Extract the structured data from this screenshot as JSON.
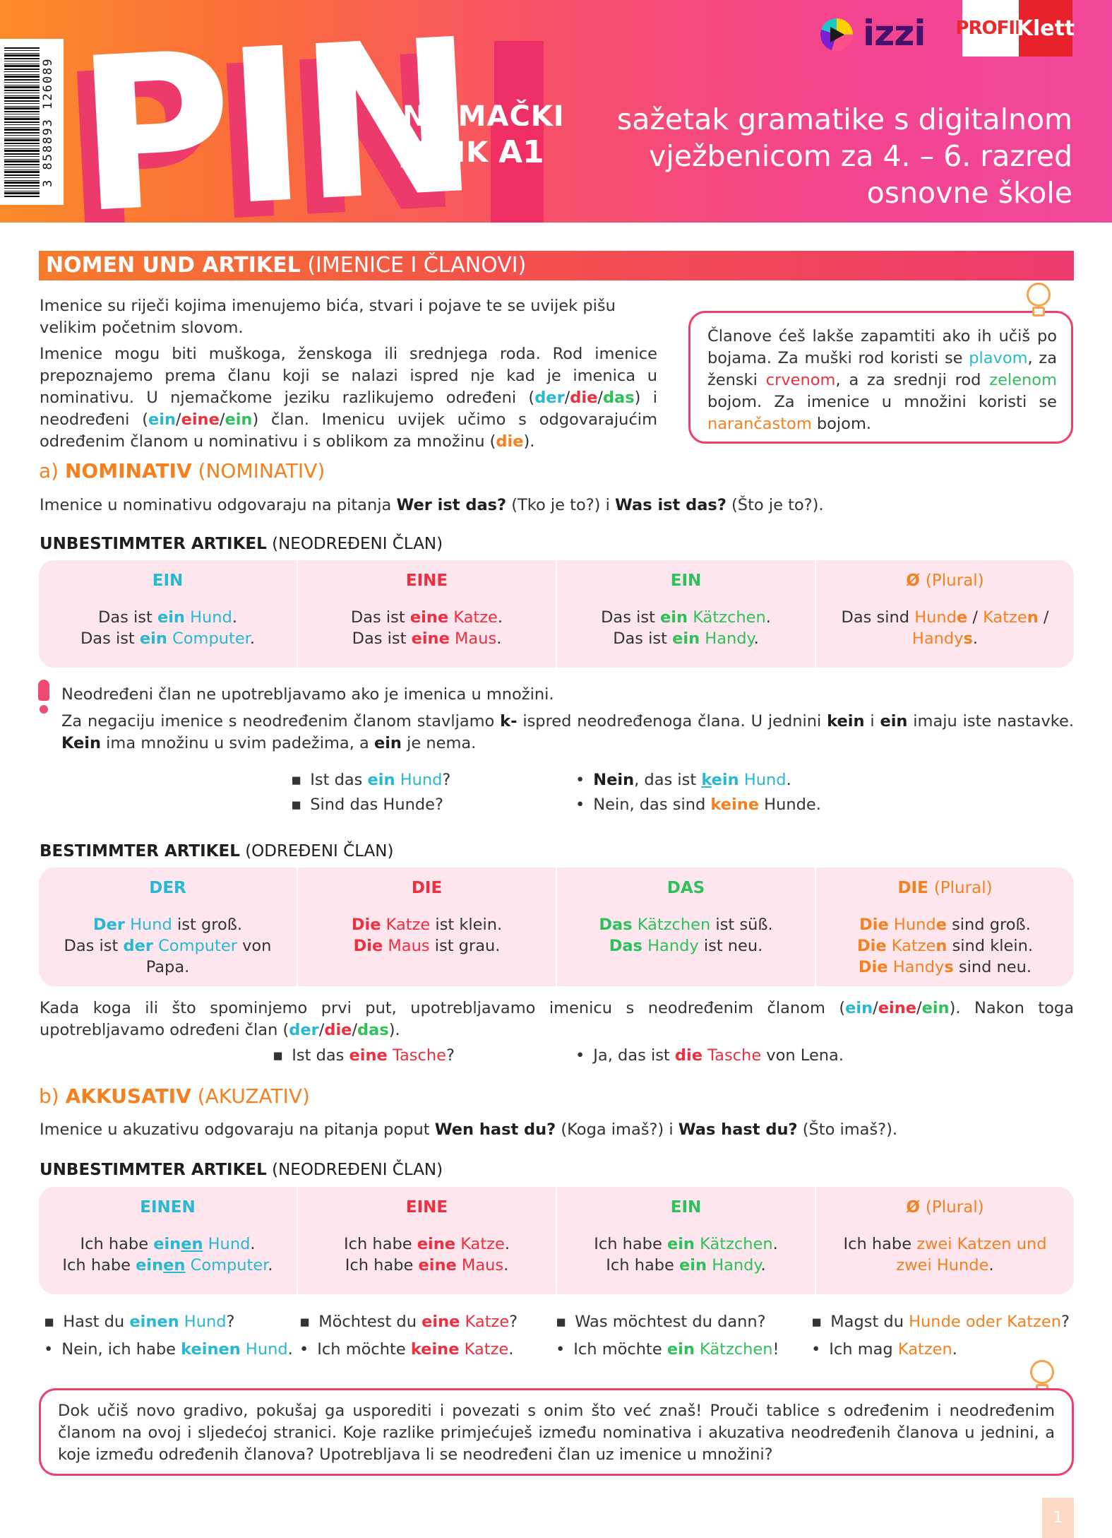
{
  "header": {
    "barcode_digits": "3 858893 126089",
    "title": "PIN",
    "subject_line1": "NJEMAČKI",
    "subject_line2": "JEZIK",
    "level": "A1",
    "tagline_line1": "sažetak gramatike s digitalnom",
    "tagline_line2": "vježbenicom za 4. – 6. razred",
    "tagline_line3": "osnovne škole",
    "logo_izzi": "izzi",
    "logo_profil": "PROFIL",
    "logo_klett": "Klett"
  },
  "section": {
    "title_bold": "NOMEN UND ARTIKEL",
    "title_rest": "(IMENICE I ČLANOVI)"
  },
  "intro": {
    "p1": "Imenice su riječi kojima imenujemo bića, stvari i pojave te se uvijek pišu velikim početnim slovom.",
    "p2_a": "Imenice mogu biti muškoga, ženskoga ili srednjega roda. Rod imenice prepoznajemo prema članu koji se nalazi ispred nje kad je imenica u nominativu. U njemačkome jeziku razlikujemo određeni (",
    "p2_b": ") i neodređeni (",
    "p2_c": ") član. Imenicu uvijek učimo s odgovarajućim određenim članom u nominativu i s oblikom za množinu (",
    "p2_d": ").",
    "der": "der",
    "die": "die",
    "das": "das",
    "ein": "ein",
    "eine": "eine",
    "slash": "/"
  },
  "tip1": {
    "a": "Članove ćeš lakše zapamtiti ako ih učiš po bojama. Za muški rod koristi se ",
    "plavom": "plavom",
    "b": ", za ženski ",
    "crvenom": "crvenom",
    "c": ", a za srednji rod ",
    "zelenom": "zelenom",
    "d": " bojom. Za imenice u množini koristi se ",
    "narancastom": "narančastom",
    "e": " bojom."
  },
  "nominativ": {
    "label": "a)",
    "bold": "NOMINATIV",
    "rest": "(NOMINATIV)",
    "q_a": "Imenice u nominativu odgovaraju na pitanja ",
    "q_b": "Wer ist das?",
    "q_c": " (Tko je to?) i ",
    "q_d": "Was ist das?",
    "q_e": " (Što je to?)."
  },
  "unbest1": {
    "bold": "UNBESTIMMTER ARTIKEL",
    "rest": "(NEODREĐENI ČLAN)"
  },
  "tbl1": {
    "h1": "EIN",
    "h2": "EINE",
    "h3": "EIN",
    "h4a": "Ø",
    "h4b": "(Plural)",
    "das_ist": "Das ist ",
    "das_sind": "Das sind ",
    "ein": "ein",
    "eine": "eine",
    "hund": "Hund",
    "computer": "Computer",
    "katze": "Katze",
    "maus": "Maus",
    "katzchen": "Kätzchen",
    "handy": "Handy",
    "hund_stem": "Hund",
    "e": "e",
    "katze_stem": "Katze",
    "n": "n",
    "handy_stem": "Handy",
    "s": "s",
    "dot": ".",
    "slash": " / "
  },
  "warning": {
    "l1": "Neodređeni član ne upotrebljavamo ako je imenica u množini.",
    "l2_a": "Za negaciju imenice s neodređenim članom stavljamo ",
    "l2_b": "k-",
    "l2_c": " ispred neodređenoga člana. U jednini ",
    "l2_d": "kein",
    "l2_e": " i ",
    "l2_f": "ein",
    "l2_g": " imaju iste nastavke. ",
    "l2_h": "Kein",
    "l2_i": " ima množinu u svim padežima, a ",
    "l2_j": "ein",
    "l2_k": " je nema."
  },
  "ex1": {
    "q1_a": "Ist das ",
    "q1_b": "ein",
    "q1_c": "Hund",
    "q1_d": "?",
    "q2": "Sind das Hunde?",
    "a1_a": "Nein",
    "a1_b": ", das ist ",
    "a1_k": "k",
    "a1_ein": "ein",
    "a1_c": "Hund",
    "a1_d": ".",
    "a2_a": "Nein, das sind ",
    "a2_b": "keine",
    "a2_c": " Hunde."
  },
  "best": {
    "bold": "BESTIMMTER ARTIKEL",
    "rest": "(ODREĐENI ČLAN)"
  },
  "tbl2": {
    "h1": "DER",
    "h2": "DIE",
    "h3": "DAS",
    "h4a": "DIE",
    "h4b": "(Plural)",
    "der": "Der",
    "der_l": "der",
    "die": "Die",
    "das": "Das",
    "hund": "Hund",
    "ist_gross": " ist groß.",
    "das_ist": "Das ist ",
    "computer": "Computer",
    "von_papa": " von Papa.",
    "katze": "Katze",
    "ist_klein": " ist klein.",
    "maus": "Maus",
    "ist_grau": " ist grau.",
    "katzchen": "Kätzchen",
    "ist_suss": " ist süß.",
    "handy": "Handy",
    "ist_neu": " ist neu.",
    "hund_stem": "Hund",
    "e": "e",
    "sind_gross": " sind groß.",
    "katze_stem": "Katze",
    "n": "n",
    "sind_klein": " sind klein.",
    "handy_stem": "Handy",
    "s": "s",
    "sind_neu": " sind neu."
  },
  "first_mention": {
    "a": "Kada koga ili što spominjemo prvi put, upotrebljavamo imenicu s neodređenim članom (",
    "b": "). Nakon toga upotrebljavamo određeni član (",
    "c": ").",
    "ein": "ein",
    "eine": "eine",
    "der": "der",
    "die": "die",
    "das": "das",
    "slash": "/"
  },
  "ex2": {
    "q_a": "Ist das ",
    "q_b": "eine",
    "q_c": " Tasche",
    "q_d": "?",
    "a_a": "Ja, das ist ",
    "a_b": "die",
    "a_c": " Tasche",
    "a_d": " von Lena."
  },
  "akkusativ": {
    "label": "b)",
    "bold": "AKKUSATIV",
    "rest": "(AKUZATIV)",
    "q_a": "Imenice u akuzativu odgovaraju na pitanja poput ",
    "q_b": "Wen hast du?",
    "q_c": " (Koga imaš?) i ",
    "q_d": "Was hast du?",
    "q_e": " (Što imaš?)."
  },
  "unbest2": {
    "bold": "UNBESTIMMTER ARTIKEL",
    "rest": "(NEODREĐENI ČLAN)"
  },
  "tbl3": {
    "h1": "EINEN",
    "h2": "EINE",
    "h3": "EIN",
    "h4a": "Ø",
    "h4b": "(Plural)",
    "ich_habe": "Ich habe ",
    "ein": "ein",
    "en": "en",
    "eine": "eine",
    "hund": "Hund",
    "computer": "Computer",
    "katze": "Katze",
    "maus": "Maus",
    "katzchen": "Kätzchen",
    "handy": "Handy",
    "plural_a": "zwei Katzen und",
    "plural_b": "zwei Hunde",
    "dot": "."
  },
  "ex3": {
    "c1_q_a": "Hast du ",
    "c1_q_b": "einen",
    "c1_q_c": " Hund",
    "c1_q_d": "?",
    "c1_a_a": "Nein, ich habe ",
    "c1_a_b": "keinen",
    "c1_a_c": " Hund",
    "c1_a_d": ".",
    "c2_q_a": "Möchtest du ",
    "c2_q_b": "eine",
    "c2_q_c": " Katze",
    "c2_q_d": "?",
    "c2_a_a": "Ich möchte ",
    "c2_a_b": "keine",
    "c2_a_c": " Katze",
    "c2_a_d": ".",
    "c3_q": "Was möchtest du dann?",
    "c3_a_a": "Ich möchte ",
    "c3_a_b": "ein",
    "c3_a_c": " Kätzchen",
    "c3_a_d": "!",
    "c4_q_a": "Magst du ",
    "c4_q_b": "Hunde oder Katzen",
    "c4_q_c": "?",
    "c4_a_a": "Ich mag ",
    "c4_a_b": "Katzen",
    "c4_a_c": "."
  },
  "tip2": {
    "text": "Dok učiš novo gradivo, pokušaj ga usporediti i povezati s onim što već znaš! Prouči tablice s određenim i neodređenim članom na ovoj i sljedećoj stranici. Koje razlike primjećuješ između nominativa i akuzativa neodređenih članova u jednini, a koje između određenih članova? Upotrebljava li se neodređeni član uz imenice u množini?"
  },
  "page_number": "1",
  "colors": {
    "masculine": "#27b8d3",
    "feminine": "#ee2f3f",
    "neuter": "#2ec15a",
    "plural": "#f4801f",
    "accent": "#ef3f6e"
  }
}
